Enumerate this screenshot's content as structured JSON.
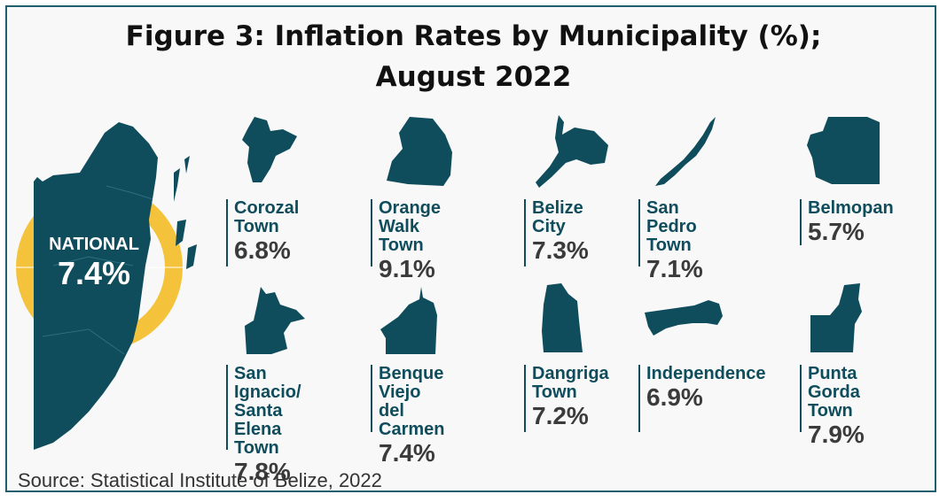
{
  "title_line1": "Figure 3: Inflation Rates by Municipality (%);",
  "title_line2": "August 2022",
  "source": "Source: Statistical Institute of Belize, 2022",
  "colors": {
    "map_fill": "#0f4c5c",
    "ring": "#f5c33b",
    "frame": "#1f5f6e",
    "value_text": "#3b3b3b"
  },
  "chart_data": {
    "type": "table",
    "national": {
      "label": "NATIONAL",
      "value": "7.4%"
    },
    "municipalities": [
      {
        "name": "Corozal\nTown",
        "value": "6.8%"
      },
      {
        "name": "Orange Walk\nTown",
        "value": "9.1%"
      },
      {
        "name": "Belize\nCity",
        "value": "7.3%"
      },
      {
        "name": "San Pedro\nTown",
        "value": "7.1%"
      },
      {
        "name": "Belmopan",
        "value": "5.7%"
      },
      {
        "name": "San Ignacio/\nSanta Elena\nTown",
        "value": "7.8%"
      },
      {
        "name": "Benque Viejo\ndel Carmen",
        "value": "7.4%"
      },
      {
        "name": "Dangriga\nTown",
        "value": "7.2%"
      },
      {
        "name": "Independence\n",
        "value": "6.9%"
      },
      {
        "name": "Punta Gorda\nTown",
        "value": "7.9%"
      }
    ]
  }
}
